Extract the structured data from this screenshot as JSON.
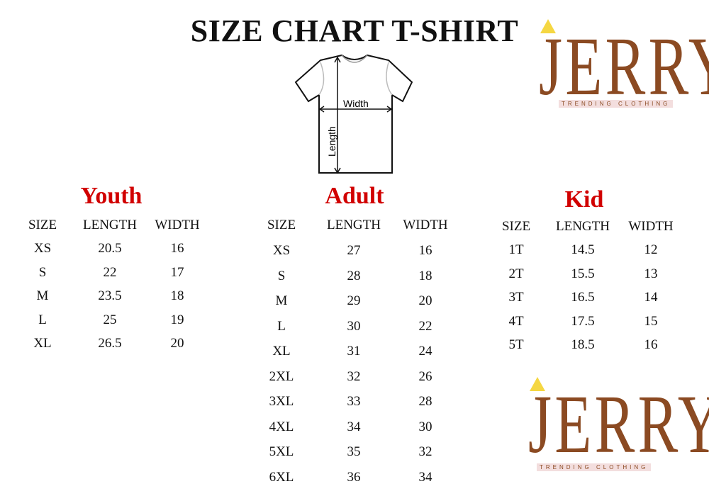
{
  "title": "SIZE CHART T-SHIRT",
  "diagram": {
    "width_label": "Width",
    "length_label": "Length"
  },
  "logo": {
    "name": "JERRY",
    "tagline": "TRENDING CLOTHING",
    "brand_color": "#8b4a22"
  },
  "accent_color": "#d10000",
  "tables": [
    {
      "title": "Youth",
      "headers": [
        "SIZE",
        "LENGTH",
        "WIDTH"
      ],
      "rows": [
        [
          "XS",
          "20.5",
          "16"
        ],
        [
          "S",
          "22",
          "17"
        ],
        [
          "M",
          "23.5",
          "18"
        ],
        [
          "L",
          "25",
          "19"
        ],
        [
          "XL",
          "26.5",
          "20"
        ]
      ]
    },
    {
      "title": "Adult",
      "headers": [
        "SIZE",
        "LENGTH",
        "WIDTH"
      ],
      "rows": [
        [
          "XS",
          "27",
          "16"
        ],
        [
          "S",
          "28",
          "18"
        ],
        [
          "M",
          "29",
          "20"
        ],
        [
          "L",
          "30",
          "22"
        ],
        [
          "XL",
          "31",
          "24"
        ],
        [
          "2XL",
          "32",
          "26"
        ],
        [
          "3XL",
          "33",
          "28"
        ],
        [
          "4XL",
          "34",
          "30"
        ],
        [
          "5XL",
          "35",
          "32"
        ],
        [
          "6XL",
          "36",
          "34"
        ]
      ]
    },
    {
      "title": "Kid",
      "headers": [
        "SIZE",
        "LENGTH",
        "WIDTH"
      ],
      "rows": [
        [
          "1T",
          "14.5",
          "12"
        ],
        [
          "2T",
          "15.5",
          "13"
        ],
        [
          "3T",
          "16.5",
          "14"
        ],
        [
          "4T",
          "17.5",
          "15"
        ],
        [
          "5T",
          "18.5",
          "16"
        ]
      ]
    }
  ]
}
